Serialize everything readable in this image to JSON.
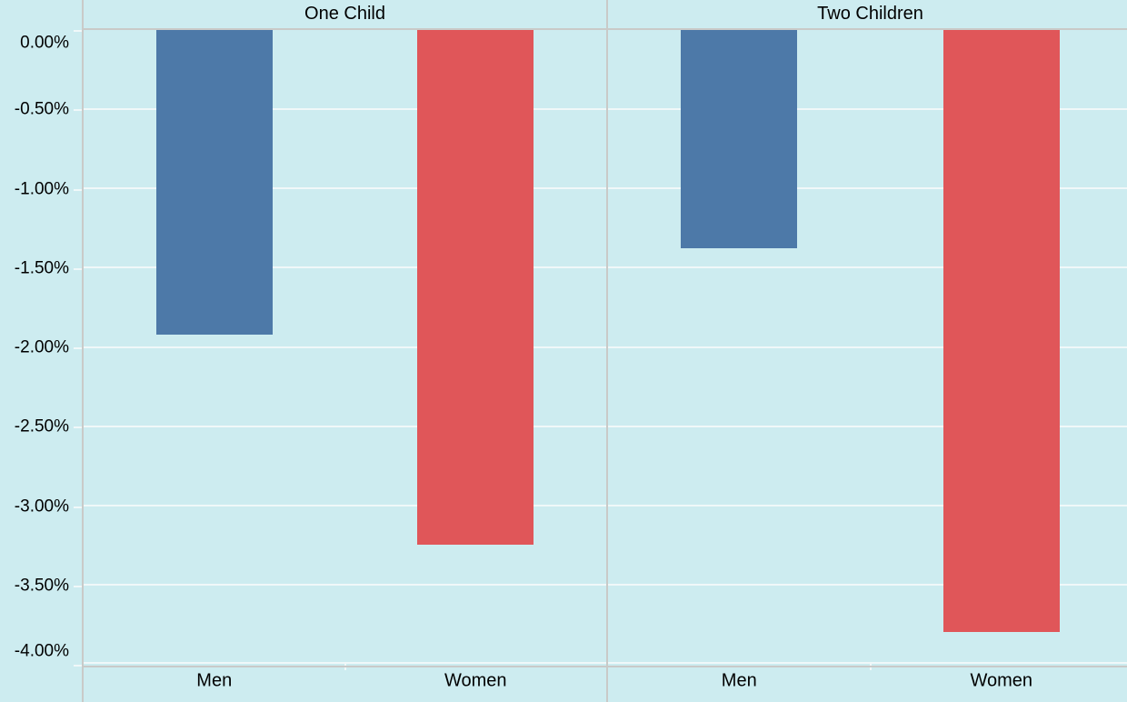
{
  "chart_data": {
    "type": "bar",
    "title": "",
    "facets": [
      {
        "title": "One Child",
        "categories": [
          "Men",
          "Women"
        ],
        "values": [
          -1.92,
          -3.25
        ]
      },
      {
        "title": "Two Children",
        "categories": [
          "Men",
          "Women"
        ],
        "values": [
          -1.38,
          -3.8
        ]
      }
    ],
    "series": [
      {
        "name": "Men",
        "values": [
          -1.92,
          -1.38
        ],
        "color": "#4d79a8"
      },
      {
        "name": "Women",
        "values": [
          -3.25,
          -3.8
        ],
        "color": "#e05659"
      }
    ],
    "xlabel": "",
    "ylabel": "",
    "unit": "percent",
    "ylim": [
      -4.0,
      0.0
    ],
    "y_ticks": [
      "0.00%",
      "-0.50%",
      "-1.00%",
      "-1.50%",
      "-2.00%",
      "-2.50%",
      "-3.00%",
      "-3.50%",
      "-4.00%"
    ],
    "grid": true,
    "legend": "none"
  },
  "colors": {
    "background": "#cdecf0",
    "gridline": "#f0f8f9",
    "axis_line": "#c9cac8",
    "bar_men": "#4d79a8",
    "bar_women": "#e05659",
    "text": "#000000"
  }
}
